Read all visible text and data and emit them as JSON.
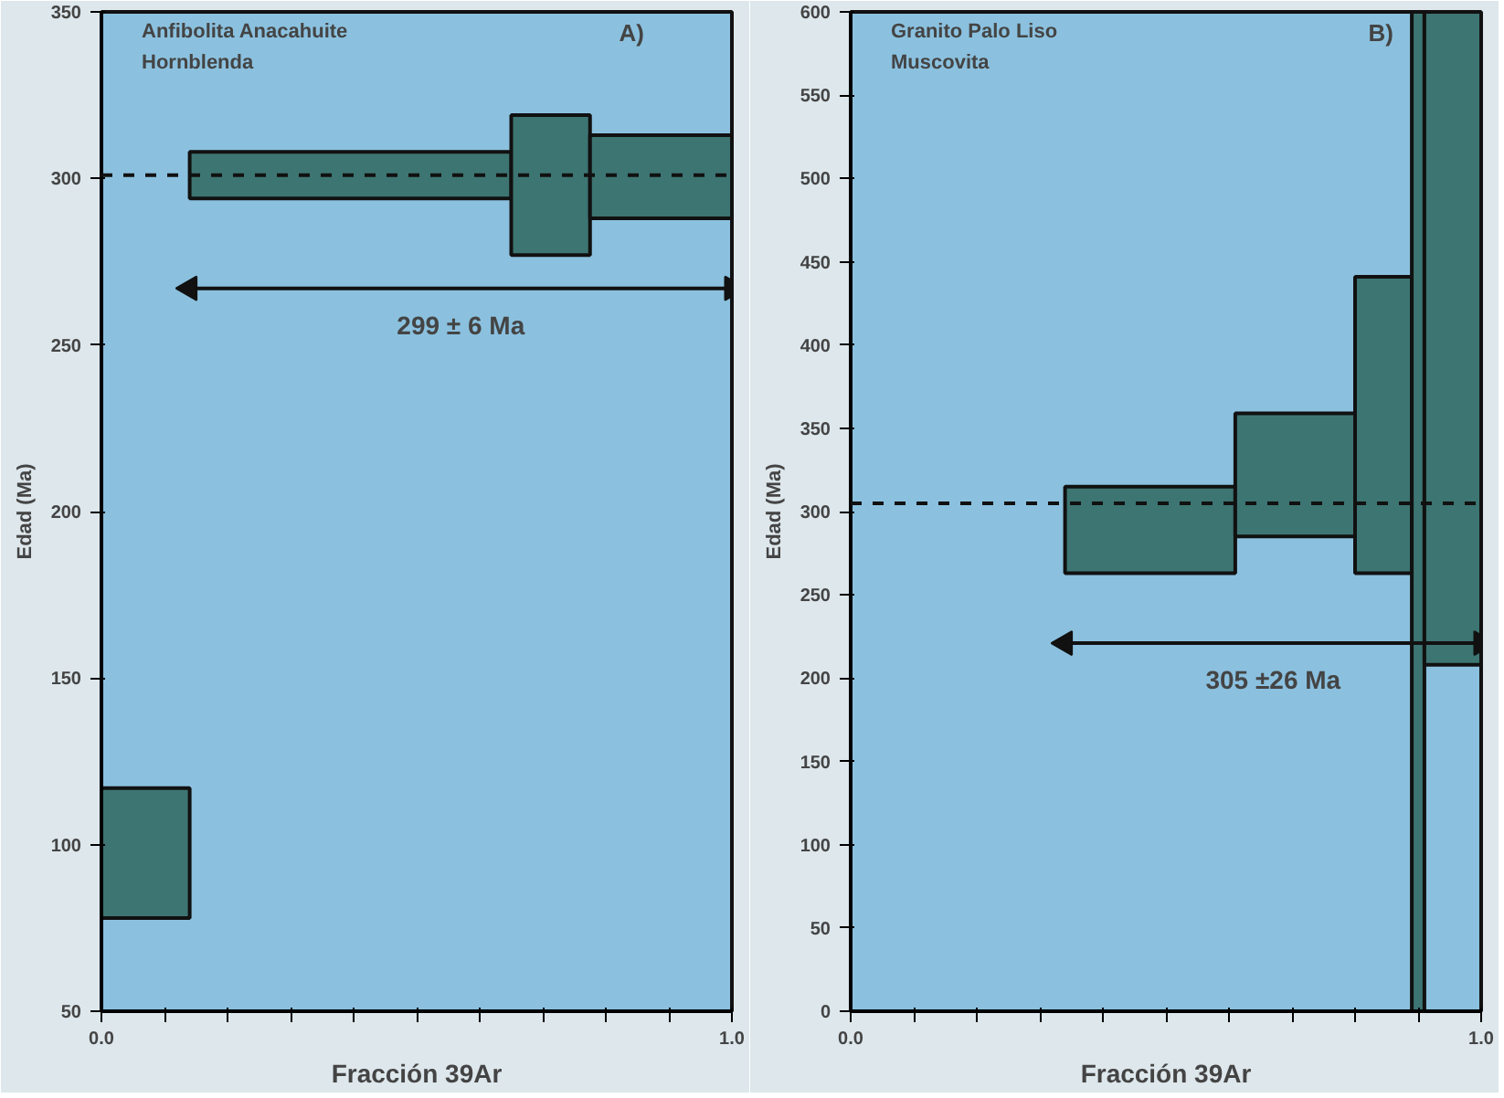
{
  "chart_data": [
    {
      "type": "histogram",
      "title": "Anfibolita Anacahuite",
      "subtitle": "Hornblenda",
      "xlabel": "Fracción 39Ar",
      "ylabel": "Edad (Ma)",
      "bins": [
        0,
        0.14,
        0.65,
        0.775,
        1.0
      ],
      "base": [
        78,
        294,
        277,
        288
      ],
      "values": [
        39,
        14,
        42,
        25
      ],
      "color": "#3d7572",
      "xlim": [
        0,
        1.0
      ],
      "ylim": [
        50,
        350
      ],
      "xticks": [
        {
          "value": 0,
          "label": "0.0"
        },
        {
          "value": 0.1,
          "label": null
        },
        {
          "value": 0.2,
          "label": null
        },
        {
          "value": 0.3,
          "label": null
        },
        {
          "value": 0.4,
          "label": null
        },
        {
          "value": 0.5,
          "label": null
        },
        {
          "value": 0.6,
          "label": null
        },
        {
          "value": 0.7,
          "label": null
        },
        {
          "value": 0.8,
          "label": null
        },
        {
          "value": 0.9,
          "label": null
        },
        {
          "value": 1.0,
          "label": "1.0"
        }
      ],
      "yticks": [
        50,
        100,
        150,
        200,
        250,
        300,
        350
      ],
      "ref_lines": [
        {
          "axis": "y",
          "value": 301,
          "line_style": "dashed",
          "color": "#111111"
        }
      ],
      "series": [
        {
          "type": "line",
          "x": [
            0.14,
            1.0
          ],
          "values": [
            267,
            267
          ],
          "color": "#111111",
          "marker": "triangle"
        }
      ],
      "annotations": [
        "A)",
        "299 ± 6 Ma"
      ]
    },
    {
      "type": "histogram",
      "title": "Granito Palo Liso",
      "subtitle": "Muscovita",
      "xlabel": "Fracción 39Ar",
      "ylabel": "Edad (Ma)",
      "bins": [
        0.34,
        0.61,
        0.8,
        0.89,
        0.91,
        1.0
      ],
      "base": [
        263,
        285,
        263,
        0,
        208
      ],
      "values": [
        52,
        74,
        178,
        600,
        392
      ],
      "color": "#3d7572",
      "xlim": [
        0,
        1.0
      ],
      "ylim": [
        0,
        600
      ],
      "xticks": [
        {
          "value": 0,
          "label": "0.0"
        },
        {
          "value": 0.1,
          "label": null
        },
        {
          "value": 0.2,
          "label": null
        },
        {
          "value": 0.3,
          "label": null
        },
        {
          "value": 0.4,
          "label": null
        },
        {
          "value": 0.5,
          "label": null
        },
        {
          "value": 0.6,
          "label": null
        },
        {
          "value": 0.7,
          "label": null
        },
        {
          "value": 0.8,
          "label": null
        },
        {
          "value": 0.9,
          "label": null
        },
        {
          "value": 1.0,
          "label": "1.0"
        }
      ],
      "yticks": [
        0,
        50,
        100,
        150,
        200,
        250,
        300,
        350,
        400,
        450,
        500,
        550,
        600
      ],
      "ref_lines": [
        {
          "axis": "y",
          "value": 305,
          "line_style": "dashed",
          "color": "#111111"
        }
      ],
      "series": [
        {
          "type": "line",
          "x": [
            0.34,
            1.0
          ],
          "values": [
            221,
            221
          ],
          "color": "#111111",
          "marker": "triangle"
        }
      ],
      "annotations": [
        "B)",
        "305 ±26 Ma"
      ]
    }
  ]
}
